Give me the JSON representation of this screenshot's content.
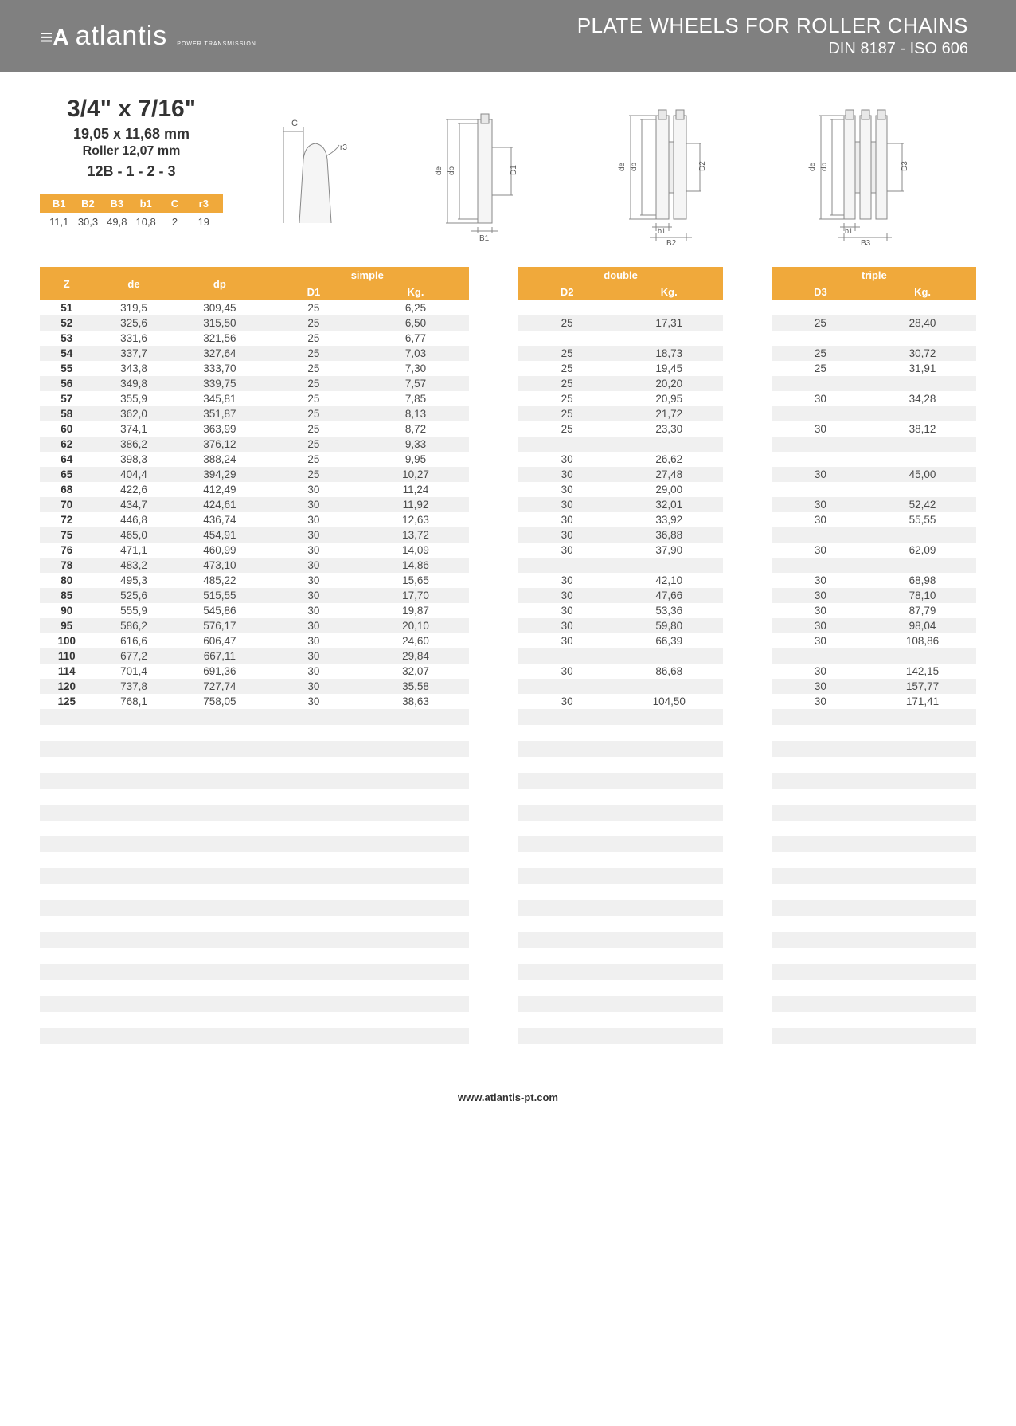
{
  "header": {
    "logo_text": "atlantis",
    "logo_sub": "POWER TRANSMISSION",
    "title": "PLATE WHEELS FOR ROLLER CHAINS",
    "subtitle": "DIN 8187 - ISO 606"
  },
  "spec": {
    "title": "3/4\" x 7/16\"",
    "line2": "19,05 x 11,68 mm",
    "line3": "Roller 12,07 mm",
    "line4": "12B - 1 - 2 - 3"
  },
  "small_table": {
    "headers": [
      "B1",
      "B2",
      "B3",
      "b1",
      "C",
      "r3"
    ],
    "values": [
      "11,1",
      "30,3",
      "49,8",
      "10,8",
      "2",
      "19"
    ]
  },
  "colors": {
    "header_bg": "#808080",
    "accent": "#f0a93b",
    "row_alt": "#f0f0f0",
    "text": "#4a4a4a"
  },
  "main_table": {
    "group_labels": [
      "simple",
      "double",
      "triple"
    ],
    "base_headers": [
      "Z",
      "de",
      "dp"
    ],
    "sub_headers": [
      [
        "D1",
        "Kg."
      ],
      [
        "D2",
        "Kg."
      ],
      [
        "D3",
        "Kg."
      ]
    ],
    "rows": [
      {
        "z": "51",
        "de": "319,5",
        "dp": "309,45",
        "d1": "25",
        "kg1": "6,25",
        "d2": "",
        "kg2": "",
        "d3": "",
        "kg3": ""
      },
      {
        "z": "52",
        "de": "325,6",
        "dp": "315,50",
        "d1": "25",
        "kg1": "6,50",
        "d2": "25",
        "kg2": "17,31",
        "d3": "25",
        "kg3": "28,40"
      },
      {
        "z": "53",
        "de": "331,6",
        "dp": "321,56",
        "d1": "25",
        "kg1": "6,77",
        "d2": "",
        "kg2": "",
        "d3": "",
        "kg3": ""
      },
      {
        "z": "54",
        "de": "337,7",
        "dp": "327,64",
        "d1": "25",
        "kg1": "7,03",
        "d2": "25",
        "kg2": "18,73",
        "d3": "25",
        "kg3": "30,72"
      },
      {
        "z": "55",
        "de": "343,8",
        "dp": "333,70",
        "d1": "25",
        "kg1": "7,30",
        "d2": "25",
        "kg2": "19,45",
        "d3": "25",
        "kg3": "31,91"
      },
      {
        "z": "56",
        "de": "349,8",
        "dp": "339,75",
        "d1": "25",
        "kg1": "7,57",
        "d2": "25",
        "kg2": "20,20",
        "d3": "",
        "kg3": ""
      },
      {
        "z": "57",
        "de": "355,9",
        "dp": "345,81",
        "d1": "25",
        "kg1": "7,85",
        "d2": "25",
        "kg2": "20,95",
        "d3": "30",
        "kg3": "34,28"
      },
      {
        "z": "58",
        "de": "362,0",
        "dp": "351,87",
        "d1": "25",
        "kg1": "8,13",
        "d2": "25",
        "kg2": "21,72",
        "d3": "",
        "kg3": ""
      },
      {
        "z": "60",
        "de": "374,1",
        "dp": "363,99",
        "d1": "25",
        "kg1": "8,72",
        "d2": "25",
        "kg2": "23,30",
        "d3": "30",
        "kg3": "38,12"
      },
      {
        "z": "62",
        "de": "386,2",
        "dp": "376,12",
        "d1": "25",
        "kg1": "9,33",
        "d2": "",
        "kg2": "",
        "d3": "",
        "kg3": ""
      },
      {
        "z": "64",
        "de": "398,3",
        "dp": "388,24",
        "d1": "25",
        "kg1": "9,95",
        "d2": "30",
        "kg2": "26,62",
        "d3": "",
        "kg3": ""
      },
      {
        "z": "65",
        "de": "404,4",
        "dp": "394,29",
        "d1": "25",
        "kg1": "10,27",
        "d2": "30",
        "kg2": "27,48",
        "d3": "30",
        "kg3": "45,00"
      },
      {
        "z": "68",
        "de": "422,6",
        "dp": "412,49",
        "d1": "30",
        "kg1": "11,24",
        "d2": "30",
        "kg2": "29,00",
        "d3": "",
        "kg3": ""
      },
      {
        "z": "70",
        "de": "434,7",
        "dp": "424,61",
        "d1": "30",
        "kg1": "11,92",
        "d2": "30",
        "kg2": "32,01",
        "d3": "30",
        "kg3": "52,42"
      },
      {
        "z": "72",
        "de": "446,8",
        "dp": "436,74",
        "d1": "30",
        "kg1": "12,63",
        "d2": "30",
        "kg2": "33,92",
        "d3": "30",
        "kg3": "55,55"
      },
      {
        "z": "75",
        "de": "465,0",
        "dp": "454,91",
        "d1": "30",
        "kg1": "13,72",
        "d2": "30",
        "kg2": "36,88",
        "d3": "",
        "kg3": ""
      },
      {
        "z": "76",
        "de": "471,1",
        "dp": "460,99",
        "d1": "30",
        "kg1": "14,09",
        "d2": "30",
        "kg2": "37,90",
        "d3": "30",
        "kg3": "62,09"
      },
      {
        "z": "78",
        "de": "483,2",
        "dp": "473,10",
        "d1": "30",
        "kg1": "14,86",
        "d2": "",
        "kg2": "",
        "d3": "",
        "kg3": ""
      },
      {
        "z": "80",
        "de": "495,3",
        "dp": "485,22",
        "d1": "30",
        "kg1": "15,65",
        "d2": "30",
        "kg2": "42,10",
        "d3": "30",
        "kg3": "68,98"
      },
      {
        "z": "85",
        "de": "525,6",
        "dp": "515,55",
        "d1": "30",
        "kg1": "17,70",
        "d2": "30",
        "kg2": "47,66",
        "d3": "30",
        "kg3": "78,10"
      },
      {
        "z": "90",
        "de": "555,9",
        "dp": "545,86",
        "d1": "30",
        "kg1": "19,87",
        "d2": "30",
        "kg2": "53,36",
        "d3": "30",
        "kg3": "87,79"
      },
      {
        "z": "95",
        "de": "586,2",
        "dp": "576,17",
        "d1": "30",
        "kg1": "20,10",
        "d2": "30",
        "kg2": "59,80",
        "d3": "30",
        "kg3": "98,04"
      },
      {
        "z": "100",
        "de": "616,6",
        "dp": "606,47",
        "d1": "30",
        "kg1": "24,60",
        "d2": "30",
        "kg2": "66,39",
        "d3": "30",
        "kg3": "108,86"
      },
      {
        "z": "110",
        "de": "677,2",
        "dp": "667,11",
        "d1": "30",
        "kg1": "29,84",
        "d2": "",
        "kg2": "",
        "d3": "",
        "kg3": ""
      },
      {
        "z": "114",
        "de": "701,4",
        "dp": "691,36",
        "d1": "30",
        "kg1": "32,07",
        "d2": "30",
        "kg2": "86,68",
        "d3": "30",
        "kg3": "142,15"
      },
      {
        "z": "120",
        "de": "737,8",
        "dp": "727,74",
        "d1": "30",
        "kg1": "35,58",
        "d2": "",
        "kg2": "",
        "d3": "30",
        "kg3": "157,77"
      },
      {
        "z": "125",
        "de": "768,1",
        "dp": "758,05",
        "d1": "30",
        "kg1": "38,63",
        "d2": "30",
        "kg2": "104,50",
        "d3": "30",
        "kg3": "171,41"
      }
    ],
    "empty_rows": 22
  },
  "footer": {
    "url": "www.atlantis-pt.com"
  },
  "diagram_labels": {
    "c": "C",
    "r3": "r3",
    "de": "de",
    "dp": "dp",
    "d1": "D1",
    "d2": "D2",
    "d3": "D3",
    "b1_lower": "b1",
    "b1_upper": "B1",
    "b2_upper": "B2",
    "b3_upper": "B3"
  }
}
